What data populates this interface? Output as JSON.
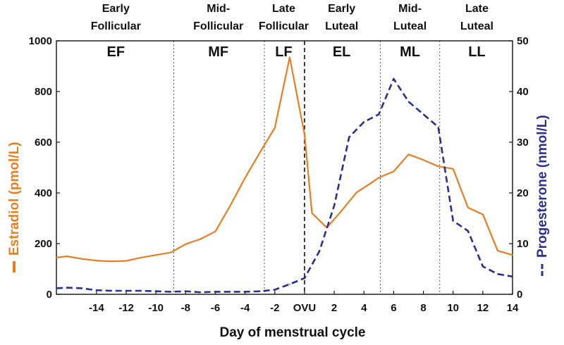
{
  "chart_data": {
    "type": "line",
    "xlabel": "Day of menstrual cycle",
    "x_tick_labels": [
      "-14",
      "-12",
      "-10",
      "-8",
      "-6",
      "-4",
      "-2",
      "OVU",
      "2",
      "4",
      "6",
      "8",
      "10",
      "12",
      "14"
    ],
    "x_range": [
      -16.7,
      14
    ],
    "y_left": {
      "label": "Estradiol (pmol/L)",
      "range": [
        0,
        1000
      ],
      "ticks": [
        "0",
        "200",
        "400",
        "600",
        "800",
        "1000"
      ]
    },
    "y_right": {
      "label": "Progesterone (nmol/L)",
      "range": [
        0,
        50
      ],
      "ticks": [
        "0",
        "10",
        "20",
        "30",
        "40",
        "50"
      ]
    },
    "phase_boundaries": [
      {
        "x": -8.8,
        "style": "dotted"
      },
      {
        "x": -2.7,
        "style": "dotted"
      },
      {
        "x": 0,
        "style": "dashed"
      },
      {
        "x": 5.1,
        "style": "dotted"
      },
      {
        "x": 9.1,
        "style": "dotted"
      }
    ],
    "phases": [
      {
        "x": -12.7,
        "label_line1": "Early",
        "label_line2": "Follicular",
        "abbr": "EF"
      },
      {
        "x": -5.8,
        "label_line1": "Mid-",
        "label_line2": "Follicular",
        "abbr": "MF"
      },
      {
        "x": -1.4,
        "label_line1": "Late",
        "label_line2": "Follicular",
        "abbr": "LF"
      },
      {
        "x": 2.5,
        "label_line1": "Early",
        "label_line2": "Luteal",
        "abbr": "EL"
      },
      {
        "x": 7.1,
        "label_line1": "Mid-",
        "label_line2": "Luteal",
        "abbr": "ML"
      },
      {
        "x": 11.6,
        "label_line1": "Late",
        "label_line2": "Luteal",
        "abbr": "LL"
      }
    ],
    "series": [
      {
        "name": "Estradiol",
        "axis": "left",
        "color": "#e67e22",
        "dash": "solid",
        "x": [
          -16.7,
          -16,
          -15,
          -14,
          -13,
          -12,
          -11,
          -10,
          -9,
          -8,
          -7,
          -6,
          -5,
          -4,
          -3,
          -2,
          -1,
          0,
          0.5,
          1.5,
          2.5,
          3.5,
          4.5,
          5,
          6,
          7,
          8,
          9,
          10,
          11,
          12,
          13,
          14
        ],
        "values": [
          145,
          150,
          140,
          133,
          130,
          132,
          145,
          155,
          165,
          198,
          218,
          248,
          350,
          460,
          560,
          657,
          935,
          630,
          320,
          263,
          330,
          402,
          440,
          460,
          485,
          552,
          530,
          505,
          495,
          342,
          315,
          172,
          155
        ]
      },
      {
        "name": "Progesterone",
        "axis": "right",
        "color": "#2b2f8f",
        "dash": "dashed",
        "x": [
          -16.7,
          -16,
          -15,
          -14,
          -13,
          -12,
          -11,
          -10,
          -9,
          -8,
          -7,
          -6,
          -5,
          -4,
          -3,
          -2,
          -1,
          0,
          1,
          2,
          3,
          4,
          5,
          6,
          7,
          8,
          9,
          10,
          11,
          12,
          13,
          14
        ],
        "values": [
          1.2,
          1.3,
          1.2,
          0.8,
          0.7,
          0.7,
          0.7,
          0.6,
          0.5,
          0.6,
          0.4,
          0.5,
          0.5,
          0.5,
          0.6,
          0.9,
          2.0,
          3.2,
          8.5,
          17.5,
          31.0,
          34.0,
          35.5,
          42.5,
          38.0,
          35.5,
          33.0,
          14.5,
          12.5,
          5.5,
          4.0,
          3.5
        ]
      }
    ]
  }
}
